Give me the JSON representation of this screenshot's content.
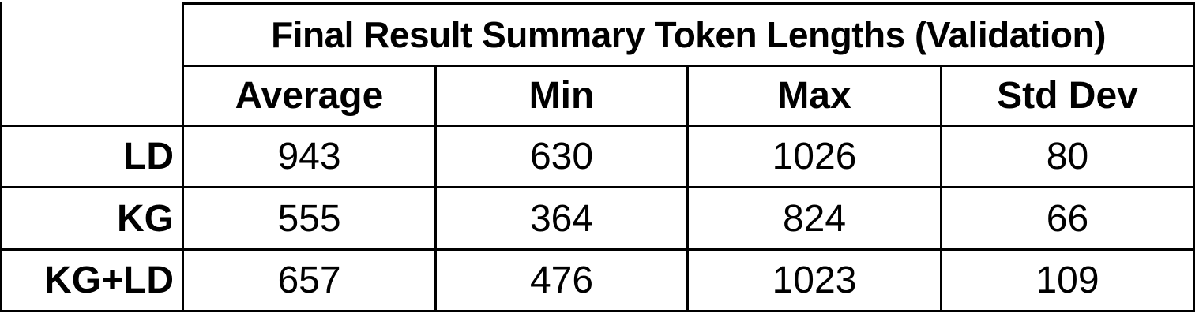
{
  "table": {
    "title": "Final Result Summary Token Lengths (Validation)",
    "columns": [
      "Average",
      "Min",
      "Max",
      "Std Dev"
    ],
    "rows": [
      {
        "label": "LD",
        "values": [
          "943",
          "630",
          "1026",
          "80"
        ]
      },
      {
        "label": "KG",
        "values": [
          "555",
          "364",
          "824",
          "66"
        ]
      },
      {
        "label": "KG+LD",
        "values": [
          "657",
          "476",
          "1023",
          "109"
        ]
      }
    ]
  }
}
